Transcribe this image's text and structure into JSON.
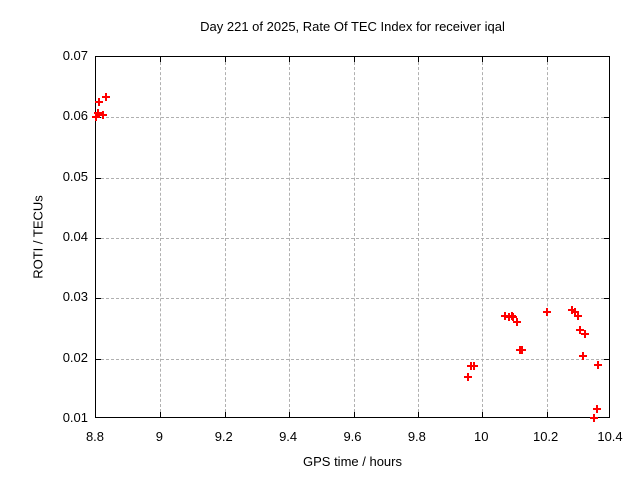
{
  "chart_data": {
    "type": "scatter",
    "title": "Day 221 of 2025, Rate Of TEC Index for receiver iqal",
    "xlabel": "GPS time / hours",
    "ylabel": "ROTI / TECUs",
    "xlim": [
      8.8,
      10.4
    ],
    "ylim": [
      0.01,
      0.07
    ],
    "x_tick_labels": [
      "8.8",
      "9",
      "9.2",
      "9.4",
      "9.6",
      "9.8",
      "10",
      "10.2",
      "10.4"
    ],
    "x_tick_values": [
      8.8,
      9.0,
      9.2,
      9.4,
      9.6,
      9.8,
      10.0,
      10.2,
      10.4
    ],
    "y_tick_labels": [
      "0.01",
      "0.02",
      "0.03",
      "0.04",
      "0.05",
      "0.06",
      "0.07"
    ],
    "y_tick_values": [
      0.01,
      0.02,
      0.03,
      0.04,
      0.05,
      0.06,
      0.07
    ],
    "grid": true,
    "legend": "none",
    "marker": "plus",
    "marker_color": "#ff0000",
    "background_color": "#ffffff",
    "points": [
      [
        8.8,
        0.06
      ],
      [
        8.805,
        0.0608
      ],
      [
        8.81,
        0.0626
      ],
      [
        8.823,
        0.0604
      ],
      [
        8.831,
        0.0633
      ],
      [
        9.956,
        0.0169
      ],
      [
        9.964,
        0.0188
      ],
      [
        9.973,
        0.0188
      ],
      [
        10.072,
        0.027
      ],
      [
        10.083,
        0.0269
      ],
      [
        10.091,
        0.0271
      ],
      [
        10.097,
        0.0269
      ],
      [
        10.108,
        0.026
      ],
      [
        10.116,
        0.0215
      ],
      [
        10.124,
        0.0214
      ],
      [
        10.2,
        0.0278
      ],
      [
        10.279,
        0.0281
      ],
      [
        10.289,
        0.0278
      ],
      [
        10.298,
        0.0271
      ],
      [
        10.305,
        0.0248
      ],
      [
        10.313,
        0.0205
      ],
      [
        10.32,
        0.0241
      ],
      [
        10.348,
        0.0101
      ],
      [
        10.357,
        0.0116
      ],
      [
        10.36,
        0.0189
      ]
    ]
  }
}
